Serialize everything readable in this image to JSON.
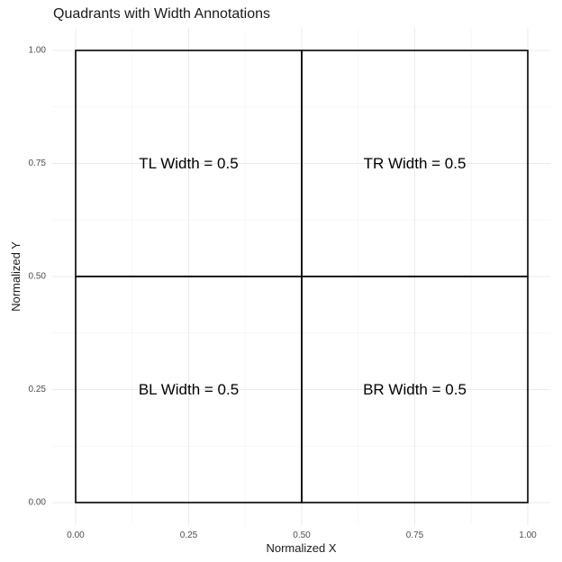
{
  "chart_data": {
    "type": "rect",
    "title": "Quadrants with Width Annotations",
    "xlabel": "Normalized X",
    "ylabel": "Normalized Y",
    "xlim": [
      0,
      1
    ],
    "ylim": [
      0,
      1
    ],
    "x_ticks": [
      0.0,
      0.25,
      0.5,
      0.75,
      1.0
    ],
    "y_ticks": [
      0.0,
      0.25,
      0.5,
      0.75,
      1.0
    ],
    "x_tick_labels": [
      "0.00",
      "0.25",
      "0.50",
      "0.75",
      "1.00"
    ],
    "y_tick_labels": [
      "0.00",
      "0.25",
      "0.50",
      "0.75",
      "1.00"
    ],
    "grid": true,
    "legend": "none",
    "border_color": "#000000",
    "quadrants": [
      {
        "id": "tl",
        "xmin": 0.0,
        "xmax": 0.5,
        "ymin": 0.5,
        "ymax": 1.0,
        "width": 0.5,
        "label": "TL Width = 0.5",
        "label_x": 0.25,
        "label_y": 0.75
      },
      {
        "id": "tr",
        "xmin": 0.5,
        "xmax": 1.0,
        "ymin": 0.5,
        "ymax": 1.0,
        "width": 0.5,
        "label": "TR Width = 0.5",
        "label_x": 0.75,
        "label_y": 0.75
      },
      {
        "id": "bl",
        "xmin": 0.0,
        "xmax": 0.5,
        "ymin": 0.0,
        "ymax": 0.5,
        "width": 0.5,
        "label": "BL Width = 0.5",
        "label_x": 0.25,
        "label_y": 0.25
      },
      {
        "id": "br",
        "xmin": 0.5,
        "xmax": 1.0,
        "ymin": 0.0,
        "ymax": 0.5,
        "width": 0.5,
        "label": "BR Width = 0.5",
        "label_x": 0.75,
        "label_y": 0.25
      }
    ]
  }
}
